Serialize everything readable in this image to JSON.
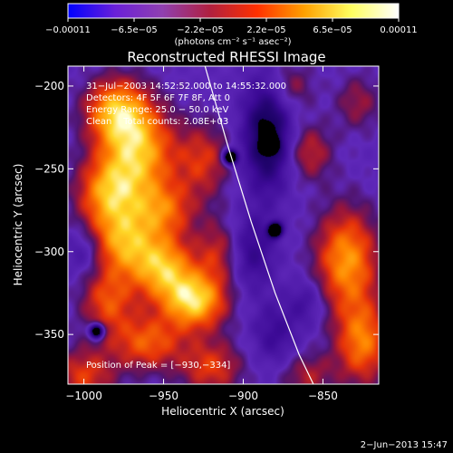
{
  "chart_data": {
    "type": "heatmap",
    "title": "Reconstructed RHESSI Image",
    "xlabel": "Heliocentric X (arcsec)",
    "ylabel": "Heliocentric Y (arcsec)",
    "xlim": [
      -1010,
      -815
    ],
    "ylim": [
      -380,
      -188
    ],
    "x_ticks": [
      {
        "value": -1000,
        "label": "−1000"
      },
      {
        "value": -950,
        "label": "−950"
      },
      {
        "value": -900,
        "label": "−900"
      },
      {
        "value": -850,
        "label": "−850"
      }
    ],
    "y_ticks": [
      {
        "value": -200,
        "label": "−200"
      },
      {
        "value": -250,
        "label": "−250"
      },
      {
        "value": -300,
        "label": "−300"
      },
      {
        "value": -350,
        "label": "−350"
      }
    ],
    "colorbar": {
      "range": [
        -0.00011,
        0.00011
      ],
      "tick_labels": [
        "−0.00011",
        "−6.5e−05",
        "−2.2e−05",
        "2.2e−05",
        "6.5e−05",
        "0.00011"
      ],
      "unit_label": "(photons cm⁻² s⁻¹ asec⁻²)",
      "colors": [
        "#0000ff",
        "#6a20d8",
        "#9040b0",
        "#b02040",
        "#ff3000",
        "#ffa000",
        "#ffff60",
        "#ffffff"
      ]
    },
    "annotations": [
      "31−Jul−2003 14:52:52.000 to 14:55:32.000",
      "Detectors: 4F 5F 6F 7F 8F, Att 0",
      "Energy Range: 25.0 − 50.0 keV",
      "Clean    Total counts: 2.08E+03"
    ],
    "peak_label": "Position of Peak = [−930,−334]",
    "peak": {
      "x": -930,
      "y": -334
    },
    "blobs": [
      {
        "x": -980,
        "y": -215,
        "sx": 14,
        "sy": 14,
        "a": 0.85
      },
      {
        "x": -965,
        "y": -240,
        "sx": 16,
        "sy": 20,
        "a": 0.9
      },
      {
        "x": -985,
        "y": -265,
        "sx": 14,
        "sy": 16,
        "a": 0.8
      },
      {
        "x": -950,
        "y": -275,
        "sx": 14,
        "sy": 12,
        "a": 0.6
      },
      {
        "x": -975,
        "y": -295,
        "sx": 14,
        "sy": 14,
        "a": 0.75
      },
      {
        "x": -950,
        "y": -310,
        "sx": 14,
        "sy": 14,
        "a": 0.9
      },
      {
        "x": -930,
        "y": -330,
        "sx": 14,
        "sy": 12,
        "a": 1.0
      },
      {
        "x": -985,
        "y": -330,
        "sx": 12,
        "sy": 14,
        "a": 0.6
      },
      {
        "x": -960,
        "y": -355,
        "sx": 16,
        "sy": 12,
        "a": 0.65
      },
      {
        "x": -1000,
        "y": -375,
        "sx": 14,
        "sy": 12,
        "a": 0.55
      },
      {
        "x": -920,
        "y": -370,
        "sx": 14,
        "sy": 12,
        "a": 0.55
      },
      {
        "x": -925,
        "y": -245,
        "sx": 12,
        "sy": 16,
        "a": 0.5
      },
      {
        "x": -915,
        "y": -300,
        "sx": 10,
        "sy": 14,
        "a": 0.45
      },
      {
        "x": -835,
        "y": -305,
        "sx": 14,
        "sy": 22,
        "a": 0.85
      },
      {
        "x": -825,
        "y": -355,
        "sx": 12,
        "sy": 18,
        "a": 0.75
      },
      {
        "x": -858,
        "y": -240,
        "sx": 10,
        "sy": 12,
        "a": 0.45
      },
      {
        "x": -870,
        "y": -200,
        "sx": 10,
        "sy": 10,
        "a": 0.35
      },
      {
        "x": -828,
        "y": -210,
        "sx": 10,
        "sy": 12,
        "a": 0.35
      },
      {
        "x": -860,
        "y": -375,
        "sx": 12,
        "sy": 10,
        "a": 0.4
      },
      {
        "x": -885,
        "y": -230,
        "sx": 10,
        "sy": 22,
        "a": -0.9
      },
      {
        "x": -895,
        "y": -300,
        "sx": 10,
        "sy": 16,
        "a": -0.45
      },
      {
        "x": -880,
        "y": -350,
        "sx": 10,
        "sy": 14,
        "a": -0.35
      },
      {
        "x": -860,
        "y": -330,
        "sx": 8,
        "sy": 10,
        "a": -0.3
      },
      {
        "x": -1000,
        "y": -300,
        "sx": 8,
        "sy": 10,
        "a": -0.3
      }
    ],
    "dark_spots": [
      {
        "x": -883,
        "y": -235
      },
      {
        "x": -908,
        "y": -243
      },
      {
        "x": -880,
        "y": -287
      },
      {
        "x": -992,
        "y": -348
      }
    ],
    "limb": [
      {
        "x": -924,
        "y": -188
      },
      {
        "x": -910,
        "y": -235
      },
      {
        "x": -895,
        "y": -282
      },
      {
        "x": -880,
        "y": -325
      },
      {
        "x": -865,
        "y": -362
      },
      {
        "x": -856,
        "y": -380
      }
    ]
  },
  "timestamp": "2−Jun−2013 15:47"
}
